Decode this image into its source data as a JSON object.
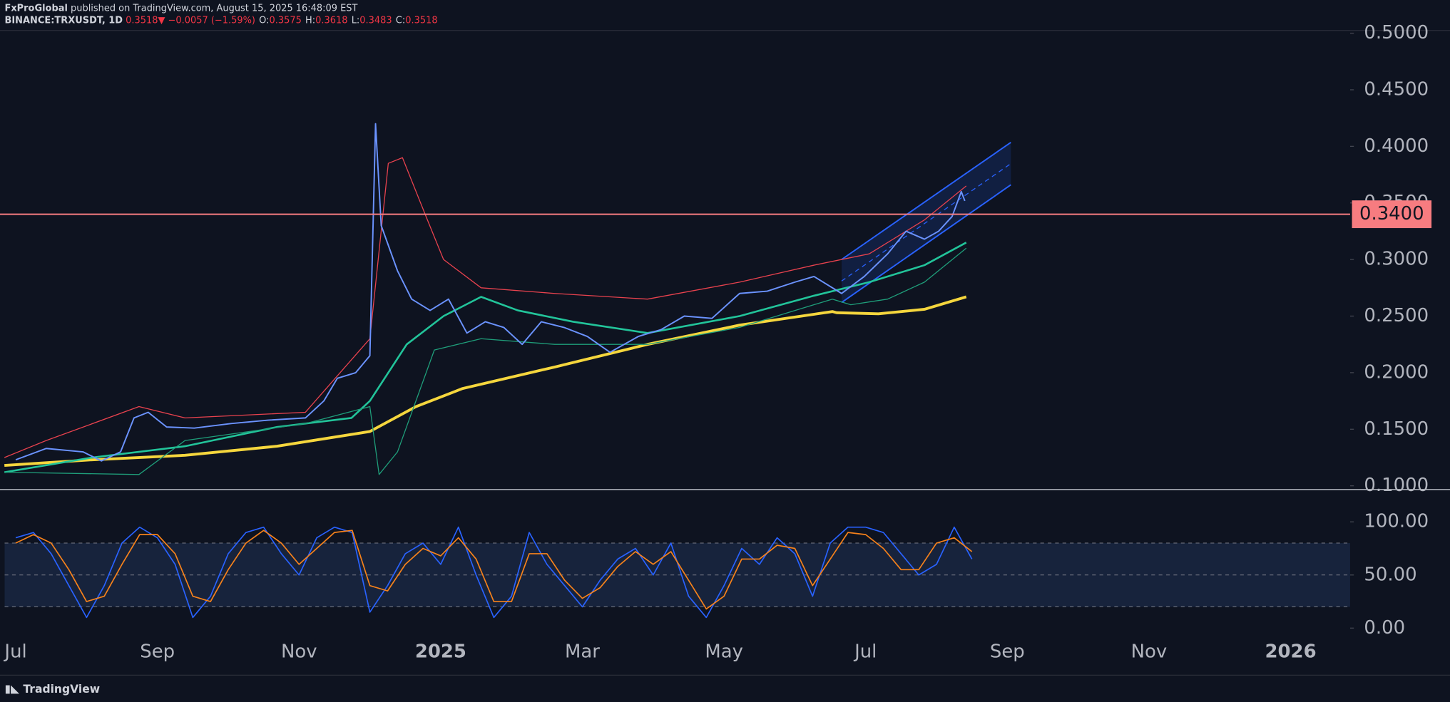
{
  "header": {
    "author": "FxProGlobal",
    "published": "published on TradingView.com, August 15, 2025 16:48:09 EST",
    "symbol": "BINANCE:TRXUSDT, 1D",
    "last": "0.3518",
    "change": "▼ −0.0057 (−1.59%)",
    "ohlc": [
      {
        "label": "O:",
        "value": "0.3575"
      },
      {
        "label": "H:",
        "value": "0.3618"
      },
      {
        "label": "L:",
        "value": "0.3483"
      },
      {
        "label": "C:",
        "value": "0.3518"
      }
    ]
  },
  "chart_data": [
    {
      "type": "line",
      "xlim": [
        -0.157,
        18.84
      ],
      "ylim": [
        0.0967,
        0.5024
      ],
      "yticks": [
        {
          "value": 0.1,
          "label": "0.1000"
        },
        {
          "value": 0.15,
          "label": "0.1500"
        },
        {
          "value": 0.2,
          "label": "0.2000"
        },
        {
          "value": 0.25,
          "label": "0.2500"
        },
        {
          "value": 0.3,
          "label": "0.3000"
        },
        {
          "value": 0.35,
          "label": "0.3500"
        },
        {
          "value": 0.4,
          "label": "0.4000"
        },
        {
          "value": 0.45,
          "label": "0.4500"
        },
        {
          "value": 0.5,
          "label": "0.5000"
        }
      ],
      "series": [
        {
          "color": "#f5d63d",
          "width": 3,
          "x": [
            -0.16,
            1.08,
            2.39,
            3.69,
            5,
            5.65,
            6.31,
            7.61,
            8.92,
            10.22,
            11.53,
            11.59,
            12.18,
            12.83,
            13.42
          ],
          "values": [
            0.118,
            0.123,
            0.127,
            0.135,
            0.148,
            0.17,
            0.186,
            0.205,
            0.225,
            0.242,
            0.254,
            0.253,
            0.252,
            0.256,
            0.267
          ]
        },
        {
          "color": "#22c49a",
          "width": 2,
          "x": [
            -0.16,
            1.08,
            2.39,
            3.69,
            4.74,
            5,
            5.52,
            6.04,
            6.57,
            7.09,
            7.87,
            8.92,
            10.22,
            11.27,
            12.05,
            12.83,
            13.42
          ],
          "values": [
            0.112,
            0.125,
            0.135,
            0.152,
            0.16,
            0.175,
            0.225,
            0.25,
            0.267,
            0.255,
            0.245,
            0.235,
            0.25,
            0.268,
            0.28,
            0.295,
            0.315
          ]
        },
        {
          "color": "#e8424e",
          "width": 1,
          "x": [
            -0.16,
            0.43,
            1.74,
            2.39,
            4.09,
            5,
            5.26,
            5.46,
            5.78,
            6.04,
            6.57,
            7.61,
            8.92,
            10.22,
            11.27,
            12.05,
            12.83,
            13.42
          ],
          "values": [
            0.125,
            0.14,
            0.17,
            0.16,
            0.165,
            0.23,
            0.385,
            0.39,
            0.34,
            0.3,
            0.275,
            0.27,
            0.265,
            0.28,
            0.295,
            0.305,
            0.335,
            0.365
          ]
        },
        {
          "color": "#1f9e7a",
          "width": 1,
          "x": [
            -0.16,
            1.74,
            2.39,
            4.09,
            5,
            5.13,
            5.39,
            5.91,
            6.57,
            7.61,
            8.92,
            10.22,
            11.53,
            11.79,
            12.31,
            12.83,
            13.42
          ],
          "values": [
            0.112,
            0.11,
            0.14,
            0.155,
            0.17,
            0.11,
            0.13,
            0.22,
            0.23,
            0.225,
            0.225,
            0.24,
            0.265,
            0.26,
            0.265,
            0.28,
            0.31
          ]
        },
        {
          "color": "#6b93ff",
          "width": 1.5,
          "x": [
            0,
            0.43,
            0.95,
            1.21,
            1.48,
            1.67,
            1.87,
            2.13,
            2.52,
            3.04,
            3.56,
            4.09,
            4.35,
            4.54,
            4.8,
            5,
            5.08,
            5.16,
            5.39,
            5.59,
            5.85,
            6.11,
            6.37,
            6.63,
            6.89,
            7.15,
            7.42,
            7.74,
            8.07,
            8.39,
            8.79,
            9.11,
            9.44,
            9.83,
            10.22,
            10.61,
            11,
            11.27,
            11.66,
            11.98,
            12.31,
            12.57,
            12.83,
            13.03,
            13.22,
            13.35,
            13.4
          ],
          "values": [
            0.123,
            0.133,
            0.13,
            0.122,
            0.13,
            0.16,
            0.165,
            0.152,
            0.151,
            0.155,
            0.158,
            0.16,
            0.175,
            0.195,
            0.2,
            0.215,
            0.42,
            0.33,
            0.29,
            0.265,
            0.255,
            0.265,
            0.235,
            0.245,
            0.24,
            0.225,
            0.245,
            0.24,
            0.232,
            0.218,
            0.232,
            0.238,
            0.25,
            0.248,
            0.27,
            0.272,
            0.28,
            0.285,
            0.27,
            0.285,
            0.305,
            0.325,
            0.318,
            0.325,
            0.338,
            0.36,
            0.3518
          ]
        }
      ],
      "channel": {
        "color": "#2962ff",
        "upper": {
          "x": [
            11.66,
            14.05
          ],
          "values": [
            0.3,
            0.4035
          ]
        },
        "lower": {
          "x": [
            11.66,
            14.05
          ],
          "values": [
            0.262,
            0.366
          ]
        }
      },
      "hline": {
        "value": 0.34,
        "label": "0.3400",
        "color": "#f77c80"
      }
    },
    {
      "type": "line",
      "xlim": [
        -0.157,
        18.84
      ],
      "ylim": [
        -8.7,
        130.4
      ],
      "yticks": [
        {
          "value": 0,
          "label": "0.00"
        },
        {
          "value": 50,
          "label": "50.00"
        },
        {
          "value": 100,
          "label": "100.00"
        }
      ],
      "bands": [
        20,
        80
      ],
      "xticks": [
        {
          "value": 0,
          "label": "Jul"
        },
        {
          "value": 2,
          "label": "Sep"
        },
        {
          "value": 4,
          "label": "Nov"
        },
        {
          "value": 6,
          "label": "2025"
        },
        {
          "value": 8,
          "label": "Mar"
        },
        {
          "value": 10,
          "label": "May"
        },
        {
          "value": 12,
          "label": "Jul"
        },
        {
          "value": 14,
          "label": "Sep"
        },
        {
          "value": 16,
          "label": "Nov"
        },
        {
          "value": 18,
          "label": "2026"
        }
      ],
      "x": [
        0,
        0.25,
        0.5,
        0.75,
        1,
        1.25,
        1.5,
        1.75,
        2,
        2.25,
        2.5,
        2.75,
        3,
        3.25,
        3.5,
        3.75,
        4,
        4.25,
        4.5,
        4.75,
        5,
        5.25,
        5.5,
        5.75,
        6,
        6.25,
        6.5,
        6.75,
        7,
        7.25,
        7.5,
        7.75,
        8,
        8.25,
        8.5,
        8.75,
        9,
        9.25,
        9.5,
        9.75,
        10,
        10.25,
        10.5,
        10.75,
        11,
        11.25,
        11.5,
        11.75,
        12,
        12.25,
        12.5,
        12.75,
        13,
        13.25,
        13.5
      ],
      "series": [
        {
          "color": "#2962ff",
          "values": [
            85,
            90,
            70,
            40,
            10,
            40,
            80,
            95,
            85,
            60,
            10,
            30,
            70,
            90,
            95,
            70,
            50,
            85,
            95,
            90,
            15,
            40,
            70,
            80,
            60,
            95,
            50,
            10,
            30,
            90,
            60,
            40,
            20,
            45,
            65,
            75,
            50,
            80,
            30,
            10,
            40,
            75,
            60,
            85,
            70,
            30,
            80,
            95,
            95,
            90,
            70,
            50,
            60,
            95,
            65
          ]
        },
        {
          "color": "#f7821b",
          "values": [
            80,
            88,
            80,
            55,
            25,
            30,
            60,
            88,
            88,
            70,
            30,
            25,
            55,
            80,
            92,
            80,
            60,
            75,
            90,
            92,
            40,
            35,
            60,
            75,
            68,
            85,
            65,
            25,
            25,
            70,
            70,
            45,
            28,
            38,
            58,
            72,
            60,
            72,
            45,
            18,
            30,
            65,
            65,
            78,
            75,
            40,
            65,
            90,
            88,
            75,
            55,
            55,
            80,
            85,
            72
          ]
        }
      ]
    }
  ],
  "footer": {
    "brand": "TradingView"
  }
}
